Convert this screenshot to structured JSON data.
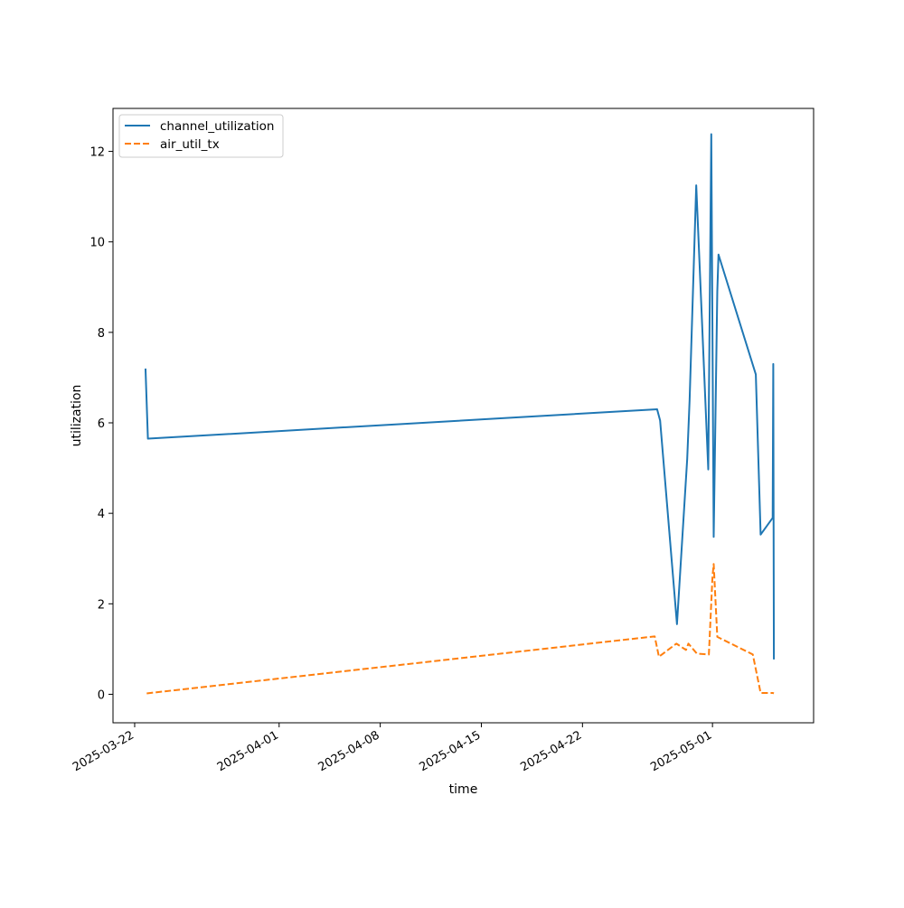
{
  "chart_data": {
    "type": "line",
    "title": "",
    "xlabel": "time",
    "ylabel": "utilization",
    "x_ticks": [
      "2025-03-22",
      "2025-04-01",
      "2025-04-08",
      "2025-04-15",
      "2025-04-22",
      "2025-05-01"
    ],
    "y_ticks": [
      0,
      2,
      4,
      6,
      8,
      10,
      12
    ],
    "xlim": [
      "2025-03-20T12:00",
      "2025-05-08T00:00"
    ],
    "ylim": [
      -0.63,
      12.95
    ],
    "grid": false,
    "legend_position": "top-left",
    "series": [
      {
        "name": "channel_utilization",
        "color": "#1f77b4",
        "style": "solid",
        "points": [
          [
            "2025-03-22T18:00",
            7.2
          ],
          [
            "2025-03-22T22:00",
            5.65
          ],
          [
            "2025-04-27T04:00",
            6.3
          ],
          [
            "2025-04-27T09:00",
            6.05
          ],
          [
            "2025-04-28T13:00",
            1.55
          ],
          [
            "2025-04-29T06:00",
            5.2
          ],
          [
            "2025-04-29T10:00",
            6.5
          ],
          [
            "2025-04-29T21:00",
            11.25
          ],
          [
            "2025-04-30T17:00",
            4.97
          ],
          [
            "2025-04-30T22:00",
            12.38
          ],
          [
            "2025-05-01T02:00",
            3.48
          ],
          [
            "2025-05-01T08:00",
            8.9
          ],
          [
            "2025-05-01T10:00",
            9.72
          ],
          [
            "2025-05-04T00:00",
            7.07
          ],
          [
            "2025-05-04T08:00",
            3.53
          ],
          [
            "2025-05-05T04:00",
            3.9
          ],
          [
            "2025-05-05T05:00",
            7.3
          ],
          [
            "2025-05-05T06:00",
            0.77
          ]
        ]
      },
      {
        "name": "air_util_tx",
        "color": "#ff7f0e",
        "style": "dashed",
        "points": [
          [
            "2025-03-22T20:00",
            0.02
          ],
          [
            "2025-04-27T00:00",
            1.28
          ],
          [
            "2025-04-27T07:00",
            0.83
          ],
          [
            "2025-04-28T12:00",
            1.12
          ],
          [
            "2025-04-29T04:00",
            0.98
          ],
          [
            "2025-04-29T08:00",
            1.12
          ],
          [
            "2025-04-29T22:00",
            0.9
          ],
          [
            "2025-04-30T18:00",
            0.88
          ],
          [
            "2025-05-01T00:00",
            2.6
          ],
          [
            "2025-05-01T02:00",
            2.88
          ],
          [
            "2025-05-01T08:00",
            1.27
          ],
          [
            "2025-05-03T19:00",
            0.88
          ],
          [
            "2025-05-04T08:00",
            0.03
          ],
          [
            "2025-05-05T04:00",
            0.03
          ],
          [
            "2025-05-05T06:00",
            0.02
          ]
        ]
      }
    ]
  }
}
